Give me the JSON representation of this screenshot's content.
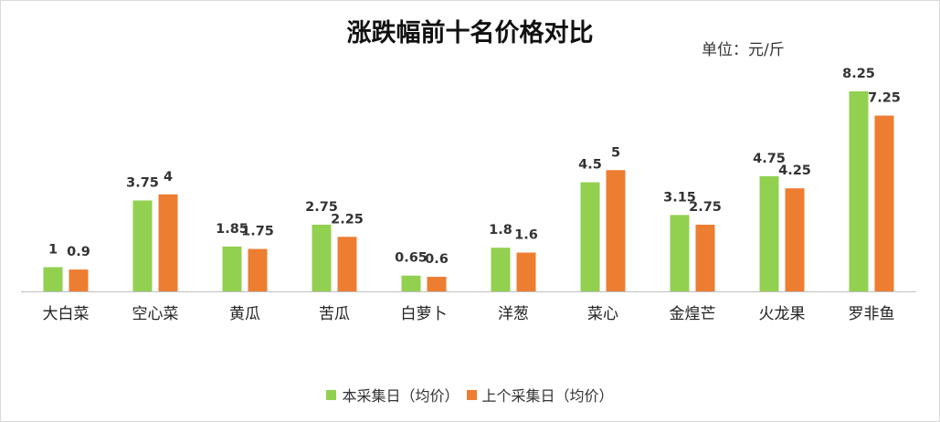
{
  "chart_data": {
    "type": "bar",
    "title": "涨跌幅前十名价格对比",
    "unit": "单位：元/斤",
    "categories": [
      "大白菜",
      "空心菜",
      "黄瓜",
      "苦瓜",
      "白萝卜",
      "洋葱",
      "菜心",
      "金煌芒",
      "火龙果",
      "罗非鱼"
    ],
    "series": [
      {
        "name": "本采集日（均价）",
        "color": "#92d050",
        "values": [
          1,
          3.75,
          1.85,
          2.75,
          0.65,
          1.8,
          4.5,
          3.15,
          4.75,
          8.25
        ]
      },
      {
        "name": "上个采集日（均价）",
        "color": "#ed7d31",
        "values": [
          0.9,
          4,
          1.75,
          2.25,
          0.6,
          1.6,
          5,
          2.75,
          4.25,
          7.25
        ]
      }
    ],
    "ylim": [
      0,
      8.25
    ],
    "xlabel": "",
    "ylabel": "",
    "legend_position": "bottom"
  }
}
